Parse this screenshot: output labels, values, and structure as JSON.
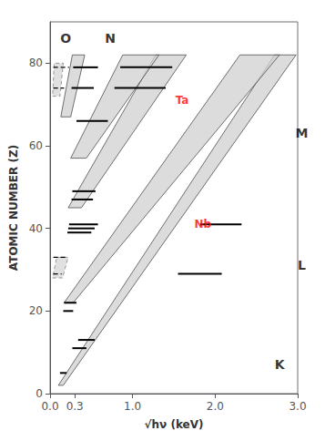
{
  "chart_data": {
    "type": "band",
    "xlabel": "√hν (keV)",
    "ylabel": "ATOMIC NUMBER (Z)",
    "xlim": [
      0,
      3.0
    ],
    "ylim": [
      0,
      90
    ],
    "xticks": [
      {
        "value": 0,
        "label": "0.0"
      },
      0.3,
      {
        "value": 1.0,
        "label": "1.0"
      },
      {
        "value": 2.0,
        "label": "2.0"
      },
      {
        "value": 3.0,
        "label": "3.0"
      }
    ],
    "yticks": [
      0,
      20,
      40,
      60,
      80
    ],
    "grid": false,
    "series": [
      {
        "type": "band",
        "color": "#d0d0d0",
        "line_style": "solid",
        "bands": [
          {
            "z_lo": [
              2,
              82
            ],
            "x_lo": [
              0.1,
              2.72
            ],
            "x_hi": [
              0.16,
              2.98
            ]
          },
          {
            "z_lo": [
              22,
              82
            ],
            "x_lo": [
              0.17,
              2.3
            ],
            "x_hi": [
              0.28,
              2.78
            ]
          },
          {
            "z_lo": [
              45,
              82
            ],
            "x_lo": [
              0.22,
              1.28
            ],
            "x_hi": [
              0.38,
              1.65
            ]
          },
          {
            "z_lo": [
              57,
              82
            ],
            "x_lo": [
              0.25,
              0.88
            ],
            "x_hi": [
              0.44,
              1.32
            ]
          },
          {
            "z_lo": [
              67,
              82
            ],
            "x_lo": [
              0.13,
              0.27
            ],
            "x_hi": [
              0.25,
              0.42
            ]
          }
        ]
      },
      {
        "type": "band",
        "color": "#d8d8d8",
        "line_style": "dashed",
        "bands": [
          {
            "z_lo": [
              28,
              33
            ],
            "x_lo": [
              0.03,
              0.08
            ],
            "x_hi": [
              0.15,
              0.22
            ]
          },
          {
            "z_lo": [
              72,
              80
            ],
            "x_lo": [
              0.03,
              0.05
            ],
            "x_hi": [
              0.12,
              0.16
            ]
          }
        ]
      },
      {
        "type": "line",
        "color": "#000000",
        "segments": [
          {
            "z": 79,
            "x1": 0.04,
            "x2": 0.23,
            "line_style": "dashed"
          },
          {
            "z": 74,
            "x1": 0.04,
            "x2": 0.17,
            "line_style": "dashed"
          },
          {
            "z": 79,
            "x1": 0.28,
            "x2": 0.58,
            "line_style": "solid"
          },
          {
            "z": 74,
            "x1": 0.26,
            "x2": 0.53,
            "line_style": "solid"
          },
          {
            "z": 66,
            "x1": 0.32,
            "x2": 0.7,
            "line_style": "solid"
          },
          {
            "z": 79,
            "x1": 0.85,
            "x2": 1.48,
            "line_style": "solid"
          },
          {
            "z": 74,
            "x1": 0.78,
            "x2": 1.4,
            "line_style": "solid"
          },
          {
            "z": 41,
            "x1": 0.23,
            "x2": 0.58,
            "line_style": "solid"
          },
          {
            "z": 40,
            "x1": 0.22,
            "x2": 0.54,
            "line_style": "solid"
          },
          {
            "z": 39,
            "x1": 0.21,
            "x2": 0.5,
            "line_style": "solid"
          },
          {
            "z": 33,
            "x1": 0.04,
            "x2": 0.2,
            "line_style": "dashed"
          },
          {
            "z": 29,
            "x1": 0.04,
            "x2": 0.14,
            "line_style": "dashed"
          },
          {
            "z": 41,
            "x1": 1.82,
            "x2": 2.32,
            "line_style": "solid"
          },
          {
            "z": 29,
            "x1": 1.55,
            "x2": 2.08,
            "line_style": "solid"
          },
          {
            "z": 13,
            "x1": 0.34,
            "x2": 0.54,
            "line_style": "solid"
          },
          {
            "z": 11,
            "x1": 0.27,
            "x2": 0.44,
            "line_style": "solid"
          },
          {
            "z": 5,
            "x1": 0.12,
            "x2": 0.2,
            "line_style": "solid"
          },
          {
            "z": 49,
            "x1": 0.27,
            "x2": 0.55,
            "line_style": "solid"
          },
          {
            "z": 47,
            "x1": 0.26,
            "x2": 0.52,
            "line_style": "solid"
          },
          {
            "z": 22,
            "x1": 0.17,
            "x2": 0.32,
            "line_style": "solid"
          },
          {
            "z": 20,
            "x1": 0.16,
            "x2": 0.28,
            "line_style": "solid"
          }
        ]
      }
    ],
    "annotations": [
      {
        "text": "K",
        "x": 2.78,
        "y": 7,
        "color": "#000000"
      },
      {
        "text": "L",
        "x": 3.05,
        "y": 31,
        "color": "#000000"
      },
      {
        "text": "M",
        "x": 3.05,
        "y": 63,
        "color": "#000000"
      },
      {
        "text": "N",
        "x": 0.73,
        "y": 86,
        "color": "#000000"
      },
      {
        "text": "O",
        "x": 0.19,
        "y": 86,
        "color": "#000000"
      },
      {
        "text": "Ta",
        "x": 1.6,
        "y": 71,
        "color": "#ff0000"
      },
      {
        "text": "Nb",
        "x": 1.85,
        "y": 41,
        "color": "#ff0000"
      }
    ]
  }
}
